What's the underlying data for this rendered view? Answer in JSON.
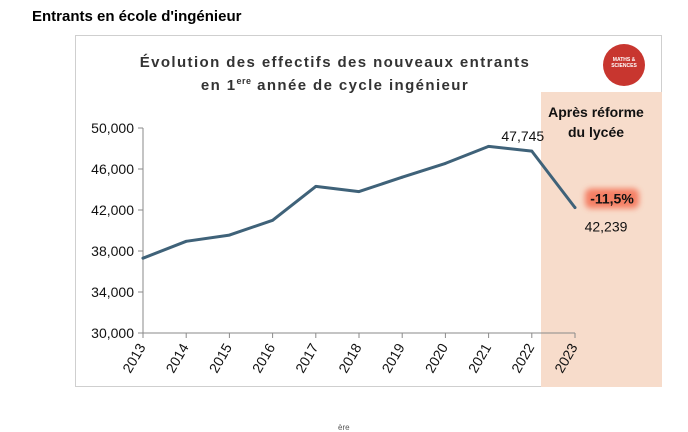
{
  "page_heading": "Entrants en école d'ingénieur",
  "chart_data": {
    "type": "line",
    "title_line1": "Évolution des effectifs des nouveaux entrants",
    "title_line2_prefix": "en 1",
    "title_line2_sup": "ere",
    "title_line2_suffix": " année de cycle ingénieur",
    "categories": [
      "2013",
      "2014",
      "2015",
      "2016",
      "2017",
      "2018",
      "2019",
      "2020",
      "2021",
      "2022",
      "2023"
    ],
    "values": [
      37300,
      38950,
      39550,
      41000,
      44300,
      43800,
      45200,
      46550,
      48200,
      47745,
      42239
    ],
    "yticks": [
      "50,000",
      "46,000",
      "42,000",
      "38,000",
      "34,000",
      "30,000"
    ],
    "ylim": [
      30000,
      50000
    ],
    "line_color": "#3f6279",
    "highlight_category": "2023",
    "highlight_color": "#f7dccb",
    "highlight_label_line1": "Après réforme",
    "highlight_label_line2": "du lycée",
    "annotations": [
      {
        "category": "2022",
        "text": "47,745"
      },
      {
        "category": "2023",
        "text": "42,239"
      }
    ],
    "change_label": "-11,5%",
    "change_label_color": "#f46f52"
  },
  "logo": {
    "line1": "MATHS &",
    "line2": "SCIENCES",
    "color": "#c8362f"
  },
  "bottom_fragment": "ère"
}
